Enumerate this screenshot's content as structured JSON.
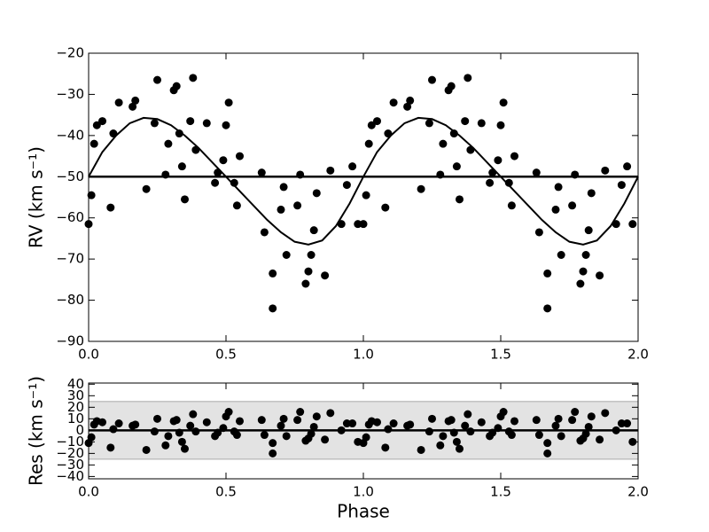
{
  "chart_data": [
    {
      "type": "scatter",
      "y_label": "RV (km s⁻¹)",
      "xlim": [
        0,
        2
      ],
      "ylim": [
        -90,
        -20
      ],
      "xticks": [
        {
          "value": 0,
          "label": "0.0"
        },
        0.5,
        {
          "value": 1,
          "label": "1.0"
        },
        1.5,
        {
          "value": 2,
          "label": "2.0"
        }
      ],
      "yticks": [
        {
          "value": -90,
          "label": "−90"
        },
        {
          "value": -80,
          "label": "−80"
        },
        {
          "value": -70,
          "label": "−70"
        },
        {
          "value": -60,
          "label": "−60"
        },
        {
          "value": -50,
          "label": "−50"
        },
        {
          "value": -40,
          "label": "−40"
        },
        {
          "value": -30,
          "label": "−30"
        },
        {
          "value": -20,
          "label": "−20"
        }
      ],
      "color": "#000000",
      "hline": -50,
      "x": [
        0.0,
        0.01,
        0.02,
        0.03,
        0.05,
        0.08,
        0.09,
        0.11,
        0.16,
        0.17,
        0.21,
        0.24,
        0.25,
        0.28,
        0.29,
        0.31,
        0.32,
        0.33,
        0.34,
        0.35,
        0.37,
        0.38,
        0.39,
        0.43,
        0.46,
        0.47,
        0.49,
        0.5,
        0.51,
        0.53,
        0.54,
        0.55,
        0.63,
        0.64,
        0.67,
        0.67,
        0.7,
        0.71,
        0.72,
        0.76,
        0.77,
        0.79,
        0.8,
        0.81,
        0.82,
        0.83,
        0.86,
        0.88,
        0.92,
        0.94,
        0.96,
        0.98,
        1.0,
        1.01,
        1.02,
        1.03,
        1.05,
        1.08,
        1.09,
        1.11,
        1.16,
        1.17,
        1.21,
        1.24,
        1.25,
        1.28,
        1.29,
        1.31,
        1.32,
        1.33,
        1.34,
        1.35,
        1.37,
        1.38,
        1.39,
        1.43,
        1.46,
        1.47,
        1.49,
        1.5,
        1.51,
        1.53,
        1.54,
        1.55,
        1.63,
        1.64,
        1.67,
        1.67,
        1.7,
        1.71,
        1.72,
        1.76,
        1.77,
        1.79,
        1.8,
        1.81,
        1.82,
        1.83,
        1.86,
        1.88,
        1.92,
        1.94,
        1.96,
        1.98
      ],
      "values": [
        -61.5,
        -54.5,
        -42,
        -37.5,
        -36.5,
        -57.5,
        -39.5,
        -32,
        -33,
        -31.5,
        -53,
        -37,
        -26.5,
        -49.5,
        -42,
        -29,
        -28,
        -39.5,
        -47.5,
        -55.5,
        -36.5,
        -26,
        -43.5,
        -37,
        -51.5,
        -49,
        -46,
        -37.5,
        -32,
        -51.5,
        -57,
        -45,
        -49,
        -63.5,
        -82,
        -73.5,
        -58,
        -52.5,
        -69,
        -57,
        -49.5,
        -76,
        -73,
        -69,
        -63,
        -54,
        -74,
        -48.5,
        -61.5,
        -52,
        -47.5,
        -61.5,
        -61.5,
        -54.5,
        -42,
        -37.5,
        -36.5,
        -57.5,
        -39.5,
        -32,
        -33,
        -31.5,
        -53,
        -37,
        -26.5,
        -49.5,
        -42,
        -29,
        -28,
        -39.5,
        -47.5,
        -55.5,
        -36.5,
        -26,
        -43.5,
        -37,
        -51.5,
        -49,
        -46,
        -37.5,
        -32,
        -51.5,
        -57,
        -45,
        -49,
        -63.5,
        -82,
        -73.5,
        -58,
        -52.5,
        -69,
        -57,
        -49.5,
        -76,
        -73,
        -69,
        -63,
        -54,
        -74,
        -48.5,
        -61.5,
        -52,
        -47.5,
        -61.5
      ],
      "model": {
        "x": [
          0,
          0.05,
          0.1,
          0.15,
          0.2,
          0.25,
          0.3,
          0.35,
          0.4,
          0.45,
          0.5,
          0.55,
          0.6,
          0.65,
          0.7,
          0.75,
          0.8,
          0.85,
          0.9,
          0.95,
          1.0,
          1.05,
          1.1,
          1.15,
          1.2,
          1.25,
          1.3,
          1.35,
          1.4,
          1.45,
          1.5,
          1.55,
          1.6,
          1.65,
          1.7,
          1.75,
          1.8,
          1.85,
          1.9,
          1.95,
          2.0
        ],
        "values": [
          -50,
          -44,
          -40,
          -37,
          -35.7,
          -36,
          -37.5,
          -40,
          -43,
          -46.5,
          -50,
          -53.5,
          -57,
          -60.5,
          -63.5,
          -65.8,
          -66.5,
          -65.5,
          -62,
          -56.5,
          -50,
          -44,
          -40,
          -37,
          -35.7,
          -36,
          -37.5,
          -40,
          -43,
          -46.5,
          -50,
          -53.5,
          -57,
          -60.5,
          -63.5,
          -65.8,
          -66.5,
          -65.5,
          -62,
          -56.5,
          -50
        ]
      }
    },
    {
      "type": "scatter",
      "y_label": "Res (km s⁻¹)",
      "x_label": "Phase",
      "xlim": [
        0,
        2
      ],
      "ylim": [
        -42,
        41
      ],
      "xticks": [
        {
          "value": 0,
          "label": "0.0"
        },
        0.5,
        {
          "value": 1,
          "label": "1.0"
        },
        1.5,
        {
          "value": 2,
          "label": "2.0"
        }
      ],
      "yticks": [
        {
          "value": -40,
          "label": "−40"
        },
        {
          "value": -30,
          "label": "−30"
        },
        {
          "value": -20,
          "label": "−20"
        },
        {
          "value": -10,
          "label": "−10"
        },
        0,
        10,
        20,
        30,
        40
      ],
      "color": "#000000",
      "hline": 0,
      "band": [
        -25,
        25
      ],
      "band_color": "#e3e3e3",
      "x": [
        0.0,
        0.01,
        0.02,
        0.03,
        0.05,
        0.08,
        0.09,
        0.11,
        0.16,
        0.17,
        0.21,
        0.24,
        0.25,
        0.28,
        0.29,
        0.31,
        0.32,
        0.33,
        0.34,
        0.35,
        0.37,
        0.38,
        0.39,
        0.43,
        0.46,
        0.47,
        0.49,
        0.5,
        0.51,
        0.53,
        0.54,
        0.55,
        0.63,
        0.64,
        0.67,
        0.67,
        0.7,
        0.71,
        0.72,
        0.76,
        0.77,
        0.79,
        0.8,
        0.81,
        0.82,
        0.83,
        0.86,
        0.88,
        0.92,
        0.94,
        0.96,
        0.98,
        1.0,
        1.01,
        1.02,
        1.03,
        1.05,
        1.08,
        1.09,
        1.11,
        1.16,
        1.17,
        1.21,
        1.24,
        1.25,
        1.28,
        1.29,
        1.31,
        1.32,
        1.33,
        1.34,
        1.35,
        1.37,
        1.38,
        1.39,
        1.43,
        1.46,
        1.47,
        1.49,
        1.5,
        1.51,
        1.53,
        1.54,
        1.55,
        1.63,
        1.64,
        1.67,
        1.67,
        1.7,
        1.71,
        1.72,
        1.76,
        1.77,
        1.79,
        1.8,
        1.81,
        1.82,
        1.83,
        1.86,
        1.88,
        1.92,
        1.94,
        1.96,
        1.98
      ],
      "values": [
        -11,
        -6,
        5,
        8,
        7,
        -15,
        1,
        6,
        4,
        5,
        -17,
        -1,
        10,
        -13,
        -5,
        8,
        9,
        -2,
        -10,
        -16,
        4,
        14,
        -1,
        7,
        -5,
        -2,
        2,
        12,
        16,
        -1,
        -4,
        8,
        9,
        -4,
        -20,
        -11,
        4,
        10,
        -5,
        9,
        16,
        -9,
        -7,
        -3,
        3,
        12,
        -8,
        15,
        0,
        6,
        6,
        -10,
        -11,
        -6,
        5,
        8,
        7,
        -15,
        1,
        6,
        4,
        5,
        -17,
        -1,
        10,
        -13,
        -5,
        8,
        9,
        -2,
        -10,
        -16,
        4,
        14,
        -1,
        7,
        -5,
        -2,
        2,
        12,
        16,
        -1,
        -4,
        8,
        9,
        -4,
        -20,
        -11,
        4,
        10,
        -5,
        9,
        16,
        -9,
        -7,
        -3,
        3,
        12,
        -8,
        15,
        0,
        6,
        6,
        -10
      ]
    }
  ]
}
